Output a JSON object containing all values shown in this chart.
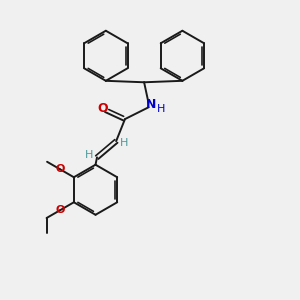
{
  "background_color": "#f0f0f0",
  "bond_color": "#1a1a1a",
  "O_color": "#cc0000",
  "N_color": "#0000cc",
  "H_color": "#4a9a9a",
  "figsize": [
    3.0,
    3.0
  ],
  "dpi": 100,
  "xlim": [
    0,
    10
  ],
  "ylim": [
    0,
    10
  ]
}
